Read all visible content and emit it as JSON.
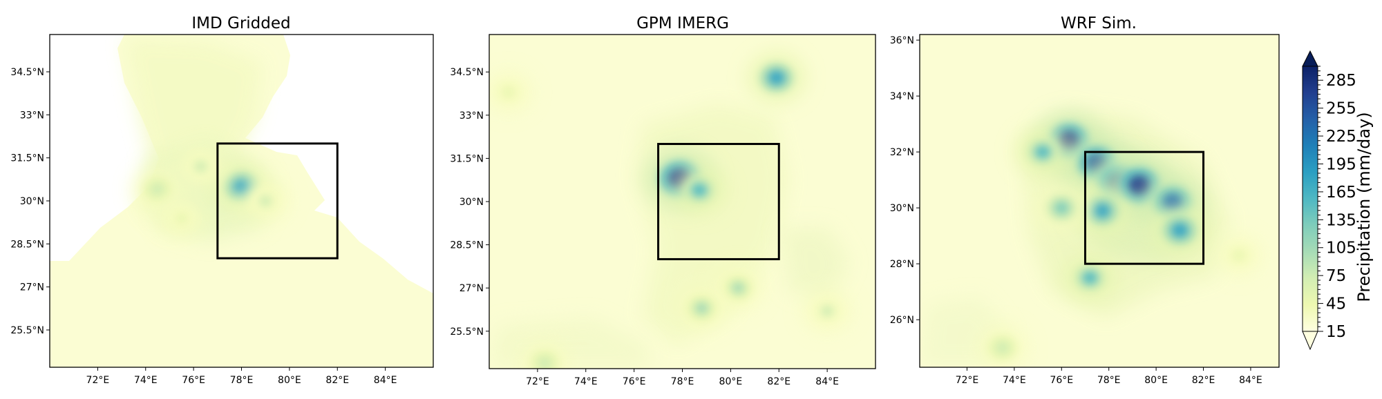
{
  "chart_data": [
    {
      "type": "heatmap",
      "title": "IMD Gridded",
      "x_ticks": [
        "72°E",
        "74°E",
        "76°E",
        "78°E",
        "80°E",
        "82°E",
        "84°E"
      ],
      "y_ticks": [
        "25.5°N",
        "27°N",
        "28.5°N",
        "30°N",
        "31.5°N",
        "33°N",
        "34.5°N"
      ],
      "xlim": [
        70,
        86
      ],
      "ylim": [
        24.2,
        35.8
      ],
      "box": {
        "lon": [
          77,
          82
        ],
        "lat": [
          28,
          32
        ]
      },
      "coverage": "land-only (white outside India)",
      "precip_centers": [
        {
          "lon": 78.0,
          "lat": 30.5,
          "value": 160
        },
        {
          "lon": 74.5,
          "lat": 30.4,
          "value": 90
        },
        {
          "lon": 76.3,
          "lat": 31.2,
          "value": 70
        },
        {
          "lon": 79.0,
          "lat": 30.0,
          "value": 70
        },
        {
          "lon": 75.5,
          "lat": 29.4,
          "value": 55
        }
      ]
    },
    {
      "type": "heatmap",
      "title": "GPM IMERG",
      "x_ticks": [
        "72°E",
        "74°E",
        "76°E",
        "78°E",
        "80°E",
        "82°E",
        "84°E"
      ],
      "y_ticks": [
        "25.5°N",
        "27°N",
        "28.5°N",
        "30°N",
        "31.5°N",
        "33°N",
        "34.5°N"
      ],
      "xlim": [
        70,
        86
      ],
      "ylim": [
        24.2,
        35.8
      ],
      "box": {
        "lon": [
          77,
          82
        ],
        "lat": [
          28,
          32
        ]
      },
      "precip_centers": [
        {
          "lon": 77.9,
          "lat": 30.8,
          "value": 260
        },
        {
          "lon": 78.7,
          "lat": 30.4,
          "value": 140
        },
        {
          "lon": 81.9,
          "lat": 34.3,
          "value": 160
        },
        {
          "lon": 80.3,
          "lat": 27.0,
          "value": 95
        },
        {
          "lon": 78.8,
          "lat": 26.3,
          "value": 110
        },
        {
          "lon": 84.0,
          "lat": 26.2,
          "value": 70
        },
        {
          "lon": 72.3,
          "lat": 24.4,
          "value": 90
        },
        {
          "lon": 70.8,
          "lat": 33.8,
          "value": 55
        }
      ]
    },
    {
      "type": "heatmap",
      "title": "WRF Sim.",
      "x_ticks": [
        "72°E",
        "74°E",
        "76°E",
        "78°E",
        "80°E",
        "82°E",
        "84°E"
      ],
      "y_ticks": [
        "26°N",
        "28°N",
        "30°N",
        "32°N",
        "34°N",
        "36°N"
      ],
      "xlim": [
        70,
        85.2
      ],
      "ylim": [
        24.3,
        36.2
      ],
      "box": {
        "lon": [
          77,
          82
        ],
        "lat": [
          28,
          32
        ]
      },
      "precip_centers": [
        {
          "lon": 76.3,
          "lat": 32.4,
          "value": 250
        },
        {
          "lon": 77.5,
          "lat": 31.6,
          "value": 230
        },
        {
          "lon": 78.4,
          "lat": 30.9,
          "value": 240
        },
        {
          "lon": 79.3,
          "lat": 30.8,
          "value": 260
        },
        {
          "lon": 80.7,
          "lat": 30.2,
          "value": 210
        },
        {
          "lon": 81.0,
          "lat": 29.2,
          "value": 170
        },
        {
          "lon": 77.7,
          "lat": 29.9,
          "value": 160
        },
        {
          "lon": 75.2,
          "lat": 32.0,
          "value": 140
        },
        {
          "lon": 76.0,
          "lat": 30.0,
          "value": 120
        },
        {
          "lon": 77.2,
          "lat": 27.5,
          "value": 140
        },
        {
          "lon": 73.5,
          "lat": 25.0,
          "value": 90
        },
        {
          "lon": 83.5,
          "lat": 28.3,
          "value": 50
        }
      ]
    }
  ],
  "colorbar": {
    "label": "Precipitation (mm/day)",
    "ticks": [
      "15",
      "45",
      "75",
      "105",
      "135",
      "165",
      "195",
      "225",
      "255",
      "285"
    ],
    "range": [
      15,
      300
    ],
    "extend": "both",
    "colors": [
      "#ffffe0",
      "#f7fcc0",
      "#e8f6b1",
      "#cfecb3",
      "#a7dcb6",
      "#7fcdbb",
      "#56bcc2",
      "#37a6c4",
      "#1d8ebf",
      "#2570b1",
      "#24559d",
      "#223a8b",
      "#0c2167",
      "#081d58"
    ]
  }
}
